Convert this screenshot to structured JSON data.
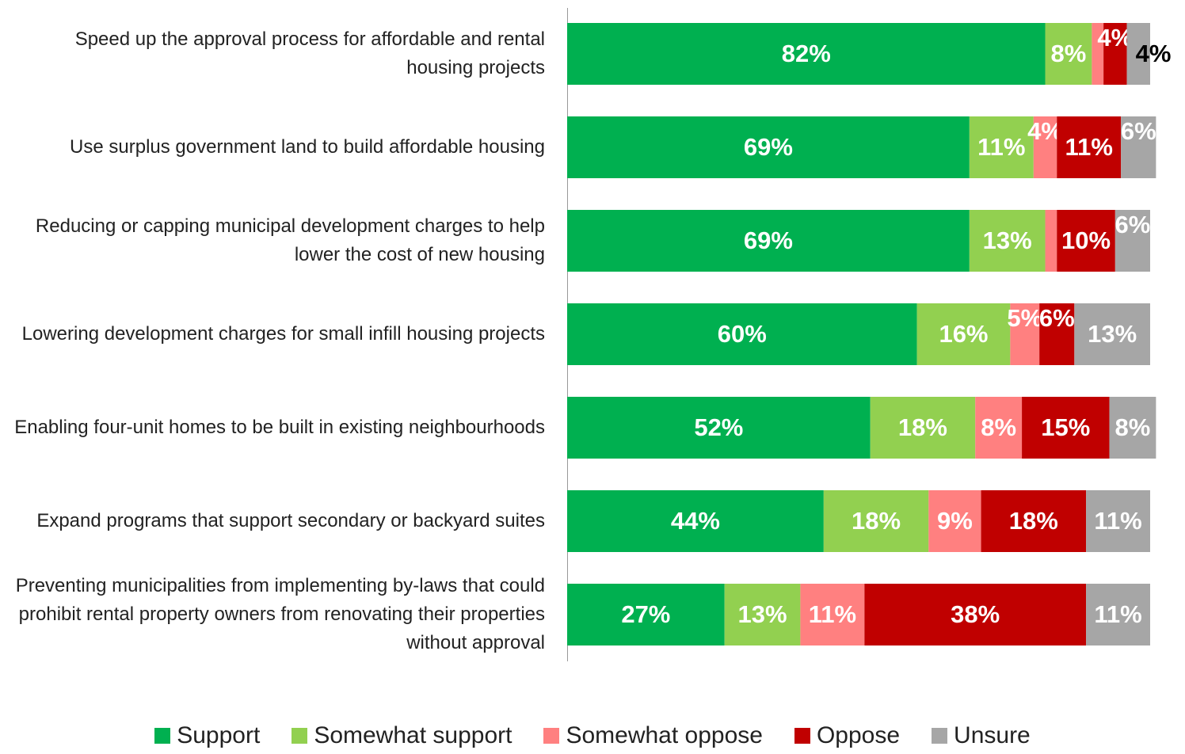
{
  "chart_data": {
    "type": "stacked_bar_horizontal",
    "categories": [
      "Speed up the approval process for affordable and rental housing projects",
      "Use surplus government land to build affordable housing",
      "Reducing or capping municipal development charges to help lower the cost of new housing",
      "Lowering development charges for small infill housing projects",
      "Enabling four-unit homes to be built in existing neighbourhoods",
      "Expand programs that support secondary or backyard suites",
      "Preventing municipalities from implementing by-laws that could prohibit rental property owners from renovating their properties without approval"
    ],
    "series": [
      {
        "name": "Support",
        "color": "#00b050",
        "values": [
          82,
          69,
          69,
          60,
          52,
          44,
          27
        ],
        "value_labels": [
          "82%",
          "69%",
          "69%",
          "60%",
          "52%",
          "44%",
          "27%"
        ]
      },
      {
        "name": "Somewhat support",
        "color": "#92d050",
        "values": [
          8,
          11,
          13,
          16,
          18,
          18,
          13
        ],
        "value_labels": [
          "8%",
          "11%",
          "13%",
          "16%",
          "18%",
          "18%",
          "13%"
        ]
      },
      {
        "name": "Somewhat oppose",
        "color": "#ff8080",
        "values": [
          2,
          4,
          2,
          5,
          8,
          9,
          11
        ],
        "value_labels": [
          null,
          "4%",
          null,
          "5%",
          "8%",
          "9%",
          "11%"
        ]
      },
      {
        "name": "Oppose",
        "color": "#c00000",
        "values": [
          4,
          11,
          10,
          6,
          15,
          18,
          38
        ],
        "value_labels": [
          "4%",
          "11%",
          "10%",
          "6%",
          "15%",
          "18%",
          "38%"
        ]
      },
      {
        "name": "Unsure",
        "color": "#a6a6a6",
        "values": [
          4,
          6,
          6,
          13,
          8,
          11,
          11
        ],
        "value_labels": [
          "4%",
          "6%",
          "6%",
          "13%",
          "8%",
          "11%",
          "11%"
        ]
      }
    ],
    "xlim": [
      0,
      100
    ],
    "legend": "bottom"
  }
}
